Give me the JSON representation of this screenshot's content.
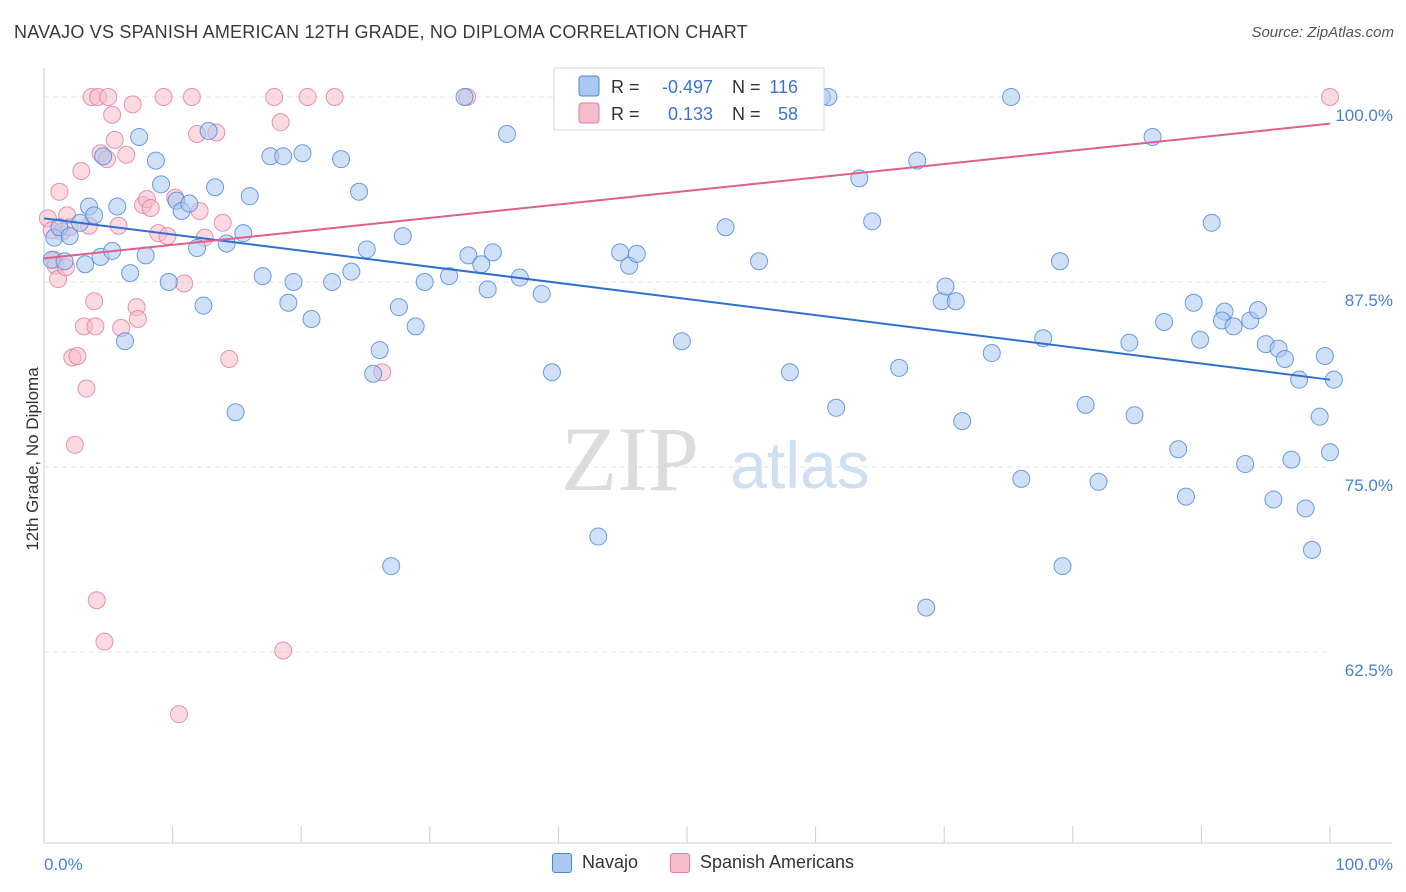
{
  "header": {
    "title": "NAVAJO VS SPANISH AMERICAN 12TH GRADE, NO DIPLOMA CORRELATION CHART",
    "source": "Source: ZipAtlas.com"
  },
  "watermark": {
    "zip": "ZIP",
    "atlas": "atlas"
  },
  "legend_box": {
    "rows": [
      {
        "r_label": "R =",
        "r_value": "-0.497",
        "n_label": "N =",
        "n_value": "116"
      },
      {
        "r_label": "R =",
        "r_value": "0.133",
        "n_label": "N =",
        "n_value": "58"
      }
    ]
  },
  "colors": {
    "navajo_fill": "#aac8f0",
    "navajo_stroke": "#4a86d8",
    "navajo_line": "#2f6fd0",
    "spanish_fill": "#f7bccb",
    "spanish_stroke": "#e07c9c",
    "spanish_line": "#e0608c",
    "tick_label": "#4a7fd0",
    "grid": "#e3e3e3"
  },
  "chart_data": {
    "type": "scatter",
    "title": "NAVAJO VS SPANISH AMERICAN 12TH GRADE, NO DIPLOMA CORRELATION CHART",
    "xlabel": "",
    "ylabel": "12th Grade, No Diploma",
    "xlim": [
      0,
      100
    ],
    "ylim": [
      52,
      101.5
    ],
    "x_tick_labels": [
      "0.0%",
      "100.0%"
    ],
    "y_ticks": [
      100,
      87.5,
      75,
      62.5
    ],
    "y_tick_labels": [
      "100.0%",
      "87.5%",
      "75.0%",
      "62.5%"
    ],
    "grid": "horizontal dashed",
    "legend_placement": "bottom-center",
    "series": [
      {
        "name": "Navajo",
        "r": -0.497,
        "n": 116,
        "trend": {
          "x": [
            0,
            100
          ],
          "y": [
            91.8,
            80.9
          ]
        },
        "points": [
          [
            0.6,
            89.0
          ],
          [
            0.8,
            90.5
          ],
          [
            1.2,
            91.2
          ],
          [
            1.6,
            88.9
          ],
          [
            2.0,
            90.6
          ],
          [
            2.8,
            91.5
          ],
          [
            3.2,
            88.7
          ],
          [
            3.5,
            92.6
          ],
          [
            3.9,
            92.0
          ],
          [
            4.4,
            89.2
          ],
          [
            4.6,
            96.0
          ],
          [
            5.3,
            89.6
          ],
          [
            5.7,
            92.6
          ],
          [
            6.3,
            83.5
          ],
          [
            6.7,
            88.1
          ],
          [
            7.4,
            97.3
          ],
          [
            7.9,
            89.3
          ],
          [
            8.7,
            95.7
          ],
          [
            9.1,
            94.1
          ],
          [
            9.7,
            87.5
          ],
          [
            10.3,
            93.0
          ],
          [
            10.7,
            92.3
          ],
          [
            11.3,
            92.8
          ],
          [
            11.9,
            89.8
          ],
          [
            12.4,
            85.9
          ],
          [
            12.8,
            97.7
          ],
          [
            13.3,
            93.9
          ],
          [
            14.2,
            90.1
          ],
          [
            14.9,
            78.7
          ],
          [
            15.5,
            90.8
          ],
          [
            16.0,
            93.3
          ],
          [
            17.0,
            87.9
          ],
          [
            17.6,
            96.0
          ],
          [
            18.6,
            96.0
          ],
          [
            19.0,
            86.1
          ],
          [
            19.4,
            87.5
          ],
          [
            20.1,
            96.2
          ],
          [
            20.8,
            85.0
          ],
          [
            22.4,
            87.5
          ],
          [
            23.1,
            95.8
          ],
          [
            23.9,
            88.2
          ],
          [
            24.5,
            93.6
          ],
          [
            25.1,
            89.7
          ],
          [
            25.6,
            81.3
          ],
          [
            26.1,
            82.9
          ],
          [
            27.0,
            68.3
          ],
          [
            27.6,
            85.8
          ],
          [
            27.9,
            90.6
          ],
          [
            28.9,
            84.5
          ],
          [
            29.6,
            87.5
          ],
          [
            31.5,
            87.9
          ],
          [
            32.7,
            100.0
          ],
          [
            33.0,
            89.3
          ],
          [
            34.0,
            88.7
          ],
          [
            34.5,
            87.0
          ],
          [
            34.9,
            89.5
          ],
          [
            36.0,
            97.5
          ],
          [
            37.0,
            87.8
          ],
          [
            38.7,
            86.7
          ],
          [
            39.5,
            81.4
          ],
          [
            43.1,
            70.3
          ],
          [
            44.8,
            89.5
          ],
          [
            45.5,
            88.6
          ],
          [
            46.1,
            89.4
          ],
          [
            49.6,
            83.5
          ],
          [
            53.0,
            91.2
          ],
          [
            54.7,
            100.0
          ],
          [
            55.6,
            88.9
          ],
          [
            58.0,
            81.4
          ],
          [
            60.5,
            100.0
          ],
          [
            61.0,
            100.0
          ],
          [
            61.6,
            79.0
          ],
          [
            63.4,
            94.5
          ],
          [
            64.4,
            91.6
          ],
          [
            66.5,
            81.7
          ],
          [
            67.9,
            95.7
          ],
          [
            68.6,
            65.5
          ],
          [
            69.8,
            86.2
          ],
          [
            70.1,
            87.2
          ],
          [
            70.9,
            86.2
          ],
          [
            71.4,
            78.1
          ],
          [
            73.7,
            82.7
          ],
          [
            75.2,
            100.0
          ],
          [
            76.0,
            74.2
          ],
          [
            77.7,
            83.7
          ],
          [
            79.0,
            88.9
          ],
          [
            79.2,
            68.3
          ],
          [
            81.0,
            79.2
          ],
          [
            82.0,
            74.0
          ],
          [
            84.4,
            83.4
          ],
          [
            84.8,
            78.5
          ],
          [
            86.2,
            97.3
          ],
          [
            87.1,
            84.8
          ],
          [
            88.2,
            76.2
          ],
          [
            88.8,
            73.0
          ],
          [
            89.4,
            86.1
          ],
          [
            89.9,
            83.6
          ],
          [
            90.8,
            91.5
          ],
          [
            91.8,
            85.5
          ],
          [
            91.6,
            84.9
          ],
          [
            92.5,
            84.5
          ],
          [
            93.4,
            75.2
          ],
          [
            93.8,
            84.9
          ],
          [
            94.4,
            85.6
          ],
          [
            95.0,
            83.3
          ],
          [
            95.6,
            72.8
          ],
          [
            96.0,
            83.0
          ],
          [
            96.5,
            82.3
          ],
          [
            97.0,
            75.5
          ],
          [
            97.6,
            80.9
          ],
          [
            98.1,
            72.2
          ],
          [
            98.6,
            69.4
          ],
          [
            99.2,
            78.4
          ],
          [
            99.6,
            82.5
          ],
          [
            100.0,
            76.0
          ],
          [
            100.3,
            80.9
          ]
        ]
      },
      {
        "name": "Spanish Americans",
        "r": 0.133,
        "n": 58,
        "trend": {
          "x": [
            0,
            100
          ],
          "y": [
            89.1,
            98.2
          ]
        },
        "points": [
          [
            0.3,
            91.8
          ],
          [
            0.6,
            91.0
          ],
          [
            0.8,
            89.0
          ],
          [
            0.9,
            88.6
          ],
          [
            1.1,
            87.7
          ],
          [
            1.2,
            93.6
          ],
          [
            1.4,
            90.9
          ],
          [
            1.7,
            88.5
          ],
          [
            1.8,
            92.0
          ],
          [
            2.0,
            91.2
          ],
          [
            2.2,
            82.4
          ],
          [
            2.4,
            76.5
          ],
          [
            2.6,
            82.5
          ],
          [
            2.9,
            95.0
          ],
          [
            3.1,
            84.5
          ],
          [
            3.3,
            80.3
          ],
          [
            3.5,
            91.3
          ],
          [
            3.7,
            100.0
          ],
          [
            3.9,
            86.2
          ],
          [
            4.0,
            84.5
          ],
          [
            4.1,
            66.0
          ],
          [
            4.2,
            100.0
          ],
          [
            4.4,
            96.2
          ],
          [
            4.7,
            63.2
          ],
          [
            4.9,
            95.8
          ],
          [
            5.0,
            100.0
          ],
          [
            5.3,
            98.8
          ],
          [
            5.5,
            97.1
          ],
          [
            5.8,
            91.3
          ],
          [
            6.0,
            84.4
          ],
          [
            6.4,
            96.1
          ],
          [
            6.9,
            99.5
          ],
          [
            7.2,
            85.8
          ],
          [
            7.3,
            85.0
          ],
          [
            7.7,
            92.7
          ],
          [
            8.0,
            93.1
          ],
          [
            8.3,
            92.5
          ],
          [
            8.9,
            90.8
          ],
          [
            9.3,
            100.0
          ],
          [
            9.6,
            90.6
          ],
          [
            10.2,
            93.2
          ],
          [
            10.5,
            58.3
          ],
          [
            10.9,
            87.4
          ],
          [
            11.5,
            100.0
          ],
          [
            11.9,
            97.5
          ],
          [
            12.1,
            92.3
          ],
          [
            12.5,
            90.5
          ],
          [
            13.4,
            97.6
          ],
          [
            13.9,
            91.5
          ],
          [
            14.4,
            82.3
          ],
          [
            17.9,
            100.0
          ],
          [
            18.4,
            98.3
          ],
          [
            18.6,
            62.6
          ],
          [
            20.5,
            100.0
          ],
          [
            22.6,
            100.0
          ],
          [
            26.3,
            81.4
          ],
          [
            100.0,
            100.0
          ],
          [
            32.9,
            100.0
          ]
        ]
      }
    ]
  },
  "bottom_legend": {
    "items": [
      {
        "label": "Navajo"
      },
      {
        "label": "Spanish Americans"
      }
    ]
  }
}
